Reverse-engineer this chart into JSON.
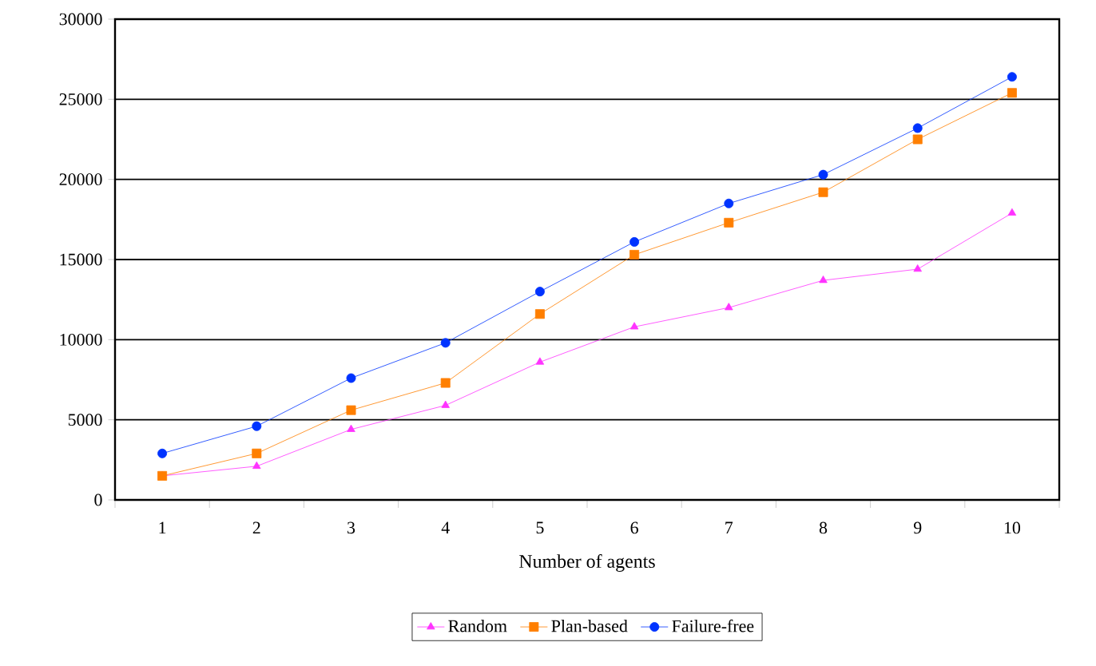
{
  "chart_data": {
    "type": "line",
    "xlabel": "Number of agents",
    "categories": [
      "1",
      "2",
      "3",
      "4",
      "5",
      "6",
      "7",
      "8",
      "9",
      "10"
    ],
    "series": [
      {
        "name": "Random",
        "color": "#ff33ff",
        "marker": "triangle",
        "values": [
          1500,
          2100,
          4400,
          5900,
          8600,
          10800,
          12000,
          13700,
          14400,
          17900
        ]
      },
      {
        "name": "Plan-based",
        "color": "#ff7f00",
        "marker": "square",
        "values": [
          1500,
          2900,
          5600,
          7300,
          11600,
          15300,
          17300,
          19200,
          22500,
          25400
        ]
      },
      {
        "name": "Failure-free",
        "color": "#0033ff",
        "marker": "circle",
        "values": [
          2900,
          4600,
          7600,
          9800,
          13000,
          16100,
          18500,
          20300,
          23200,
          26400
        ]
      }
    ],
    "ylim": [
      0,
      30000
    ],
    "yticks": [
      0,
      5000,
      10000,
      15000,
      20000,
      25000,
      30000
    ],
    "grid": "y",
    "legend": "bottom",
    "line_style": "solid"
  }
}
